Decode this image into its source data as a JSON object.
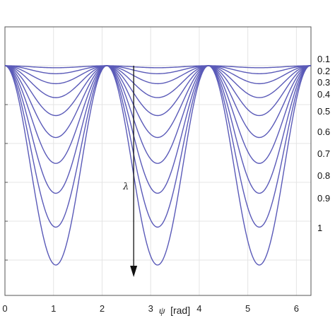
{
  "chart_data": {
    "type": "line",
    "xlabel_symbol": "ψ",
    "xlabel_unit": "[rad]",
    "ylabel": "",
    "xlim": [
      0,
      6.3
    ],
    "x_ticks": [
      "0",
      "1",
      "2",
      "3",
      "4",
      "5",
      "6"
    ],
    "grid": true,
    "annotation": {
      "label": "λ",
      "arrow_x": 2.65
    },
    "line_color": "#5a5ab8",
    "series": [
      {
        "name": "0.1",
        "amplitude": 0.01
      },
      {
        "name": "0.2",
        "amplitude": 0.04
      },
      {
        "name": "0.3",
        "amplitude": 0.09
      },
      {
        "name": "0.4",
        "amplitude": 0.16
      },
      {
        "name": "0.5",
        "amplitude": 0.25
      },
      {
        "name": "0.6",
        "amplitude": 0.36
      },
      {
        "name": "0.7",
        "amplitude": 0.49
      },
      {
        "name": "0.8",
        "amplitude": 0.64
      },
      {
        "name": "0.9",
        "amplitude": 0.81
      },
      {
        "name": "1",
        "amplitude": 1.0
      }
    ]
  }
}
